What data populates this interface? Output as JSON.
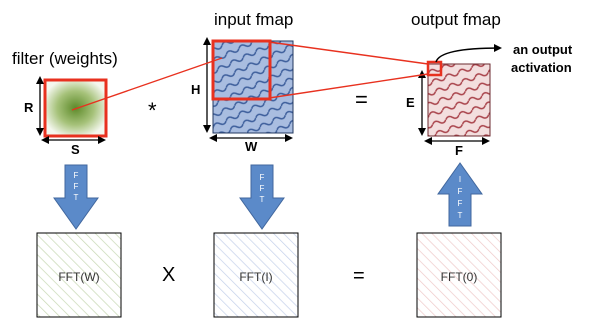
{
  "top": {
    "filter_title": "filter (weights)",
    "input_title": "input fmap",
    "output_title": "output fmap",
    "filter_dim_v": "R",
    "filter_dim_h": "S",
    "input_dim_v": "H",
    "input_dim_h": "W",
    "output_dim_v": "E",
    "output_dim_h": "F",
    "conv_op": "*",
    "equals_op": "=",
    "annotation_line1": "an output",
    "annotation_line2": "activation"
  },
  "arrows": {
    "fft_1": [
      "F",
      "F",
      "T"
    ],
    "fft_2": [
      "F",
      "F",
      "T"
    ],
    "ifft": [
      "I",
      "F",
      "F",
      "T"
    ]
  },
  "bottom": {
    "box_w": "FFT(W)",
    "box_i": "FFT(I)",
    "box_o": "FFT(0)",
    "mult_op": "X",
    "equals_op": "="
  },
  "colors": {
    "red": "#e8311f",
    "arrow_blue": "#5b8ac9",
    "filter_green": "#6f9a3a",
    "input_blue": "#7b95c8",
    "output_red": "#b3545c"
  }
}
